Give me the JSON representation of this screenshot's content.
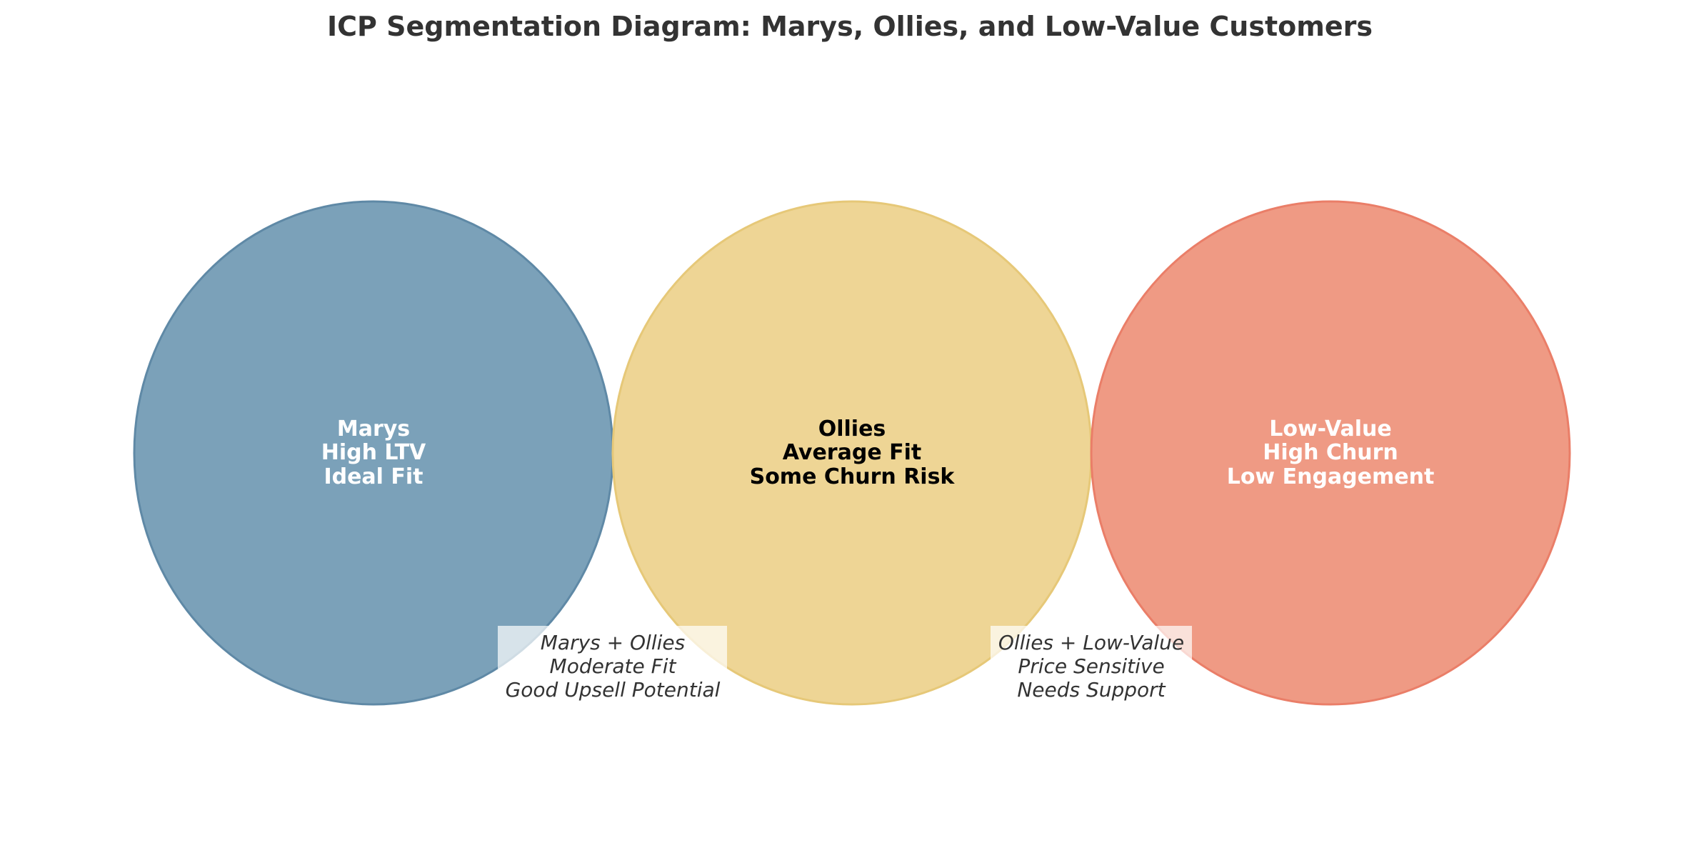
{
  "title": "ICP Segmentation Diagram: Marys, Ollies, and Low-Value Customers",
  "segments": [
    {
      "lines": [
        "Marys",
        "High LTV",
        "Ideal Fit"
      ],
      "fill": "#7ba1b9",
      "stroke": "#5f89a6",
      "text_color": "#ffffff"
    },
    {
      "lines": [
        "Ollies",
        "Average Fit",
        "Some Churn Risk"
      ],
      "fill": "#eed595",
      "stroke": "#e6c878",
      "text_color": "#000000"
    },
    {
      "lines": [
        "Low-Value",
        "High Churn",
        "Low Engagement"
      ],
      "fill": "#ef9a84",
      "stroke": "#ea7e68",
      "text_color": "#ffffff"
    }
  ],
  "overlaps": [
    {
      "lines": [
        "Marys + Ollies",
        "Moderate Fit",
        "Good Upsell Potential"
      ]
    },
    {
      "lines": [
        "Ollies + Low-Value",
        "Price Sensitive",
        "Needs Support"
      ]
    }
  ]
}
